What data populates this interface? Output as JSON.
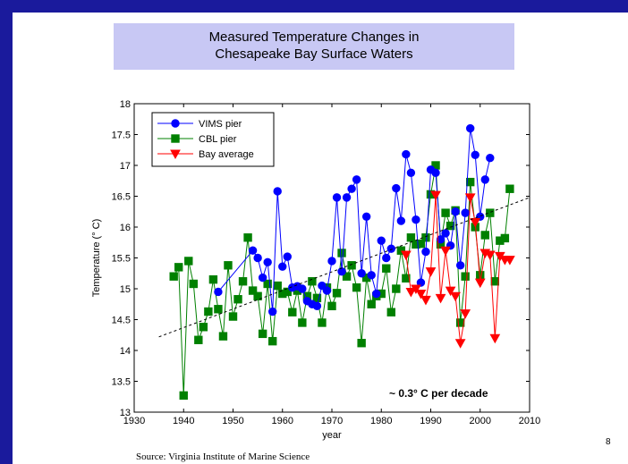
{
  "slide": {
    "title_line1": "Measured Temperature Changes in",
    "title_line2": "Chesapeake Bay Surface Waters",
    "source": "Source:  Virginia Institute of Marine Science",
    "page_number": "8",
    "colors": {
      "frame": "#1a1a9c",
      "title_bg": "#c8c8f4"
    }
  },
  "chart_data": {
    "type": "line",
    "title": "",
    "xlabel": "year",
    "ylabel": "Temperature (° C)",
    "xlim": [
      1930,
      2010
    ],
    "ylim": [
      13,
      18
    ],
    "xticks": [
      1930,
      1940,
      1950,
      1960,
      1970,
      1980,
      1990,
      2000,
      2010
    ],
    "yticks": [
      13,
      13.5,
      14,
      14.5,
      15,
      15.5,
      16,
      16.5,
      17,
      17.5,
      18
    ],
    "grid": false,
    "legend_position": "top-left",
    "annotation": "~ 0.3° C per decade",
    "series": [
      {
        "name": "VIMS pier",
        "color": "#0000ff",
        "marker": "circle",
        "points": [
          [
            1947,
            14.95
          ],
          [
            1954,
            15.62
          ],
          [
            1955,
            15.5
          ],
          [
            1956,
            15.18
          ],
          [
            1957,
            15.43
          ],
          [
            1958,
            14.63
          ],
          [
            1959,
            16.58
          ],
          [
            1960,
            15.36
          ],
          [
            1961,
            15.52
          ],
          [
            1962,
            15.02
          ],
          [
            1963,
            15.04
          ],
          [
            1964,
            15.0
          ],
          [
            1965,
            14.8
          ],
          [
            1966,
            14.75
          ],
          [
            1967,
            14.72
          ],
          [
            1968,
            15.05
          ],
          [
            1969,
            14.97
          ],
          [
            1970,
            15.45
          ],
          [
            1971,
            16.48
          ],
          [
            1972,
            15.28
          ],
          [
            1973,
            16.48
          ],
          [
            1974,
            16.62
          ],
          [
            1975,
            16.77
          ],
          [
            1976,
            15.25
          ],
          [
            1977,
            16.17
          ],
          [
            1978,
            15.22
          ],
          [
            1979,
            14.92
          ],
          [
            1980,
            15.78
          ],
          [
            1981,
            15.5
          ],
          [
            1982,
            15.65
          ],
          [
            1983,
            16.63
          ],
          [
            1984,
            16.1
          ],
          [
            1985,
            17.18
          ],
          [
            1986,
            16.88
          ],
          [
            1987,
            16.12
          ],
          [
            1988,
            15.1
          ],
          [
            1989,
            15.6
          ],
          [
            1990,
            16.93
          ],
          [
            1991,
            16.88
          ],
          [
            1992,
            15.8
          ],
          [
            1993,
            15.9
          ],
          [
            1994,
            15.7
          ],
          [
            1995,
            16.25
          ],
          [
            1996,
            15.38
          ],
          [
            1997,
            16.23
          ],
          [
            1998,
            17.6
          ],
          [
            1999,
            17.17
          ],
          [
            2000,
            16.17
          ],
          [
            2001,
            16.77
          ],
          [
            2002,
            17.12
          ]
        ]
      },
      {
        "name": "CBL pier",
        "color": "#008000",
        "marker": "square",
        "points": [
          [
            1938,
            15.2
          ],
          [
            1939,
            15.35
          ],
          [
            1940,
            13.27
          ],
          [
            1941,
            15.45
          ],
          [
            1942,
            15.08
          ],
          [
            1943,
            14.17
          ],
          [
            1944,
            14.38
          ],
          [
            1945,
            14.63
          ],
          [
            1946,
            15.15
          ],
          [
            1947,
            14.67
          ],
          [
            1948,
            14.23
          ],
          [
            1949,
            15.38
          ],
          [
            1950,
            14.55
          ],
          [
            1951,
            14.83
          ],
          [
            1952,
            15.12
          ],
          [
            1953,
            15.83
          ],
          [
            1954,
            14.97
          ],
          [
            1955,
            14.88
          ],
          [
            1956,
            14.27
          ],
          [
            1957,
            15.08
          ],
          [
            1958,
            14.15
          ],
          [
            1959,
            15.05
          ],
          [
            1960,
            14.92
          ],
          [
            1961,
            14.95
          ],
          [
            1962,
            14.62
          ],
          [
            1963,
            14.97
          ],
          [
            1964,
            14.45
          ],
          [
            1965,
            14.88
          ],
          [
            1966,
            15.12
          ],
          [
            1967,
            14.85
          ],
          [
            1968,
            14.45
          ],
          [
            1969,
            15.02
          ],
          [
            1970,
            14.72
          ],
          [
            1971,
            14.93
          ],
          [
            1972,
            15.58
          ],
          [
            1973,
            15.2
          ],
          [
            1974,
            15.38
          ],
          [
            1975,
            15.02
          ],
          [
            1976,
            14.12
          ],
          [
            1977,
            15.18
          ],
          [
            1978,
            14.75
          ],
          [
            1979,
            14.88
          ],
          [
            1980,
            14.92
          ],
          [
            1981,
            15.33
          ],
          [
            1982,
            14.62
          ],
          [
            1983,
            15.0
          ],
          [
            1984,
            15.62
          ],
          [
            1985,
            15.17
          ],
          [
            1986,
            15.83
          ],
          [
            1987,
            15.72
          ],
          [
            1988,
            15.73
          ],
          [
            1989,
            15.83
          ],
          [
            1990,
            16.53
          ],
          [
            1991,
            17.0
          ],
          [
            1992,
            15.72
          ],
          [
            1993,
            16.23
          ],
          [
            1994,
            16.02
          ],
          [
            1995,
            16.27
          ],
          [
            1996,
            14.45
          ],
          [
            1997,
            15.2
          ],
          [
            1998,
            16.73
          ],
          [
            1999,
            16.0
          ],
          [
            2000,
            15.22
          ],
          [
            2001,
            15.87
          ],
          [
            2002,
            16.23
          ],
          [
            2003,
            15.12
          ],
          [
            2004,
            15.78
          ],
          [
            2005,
            15.82
          ],
          [
            2006,
            16.62
          ]
        ]
      },
      {
        "name": "Bay average",
        "color": "#ff0000",
        "marker": "triangle-down",
        "points": [
          [
            1985,
            15.55
          ],
          [
            1986,
            14.95
          ],
          [
            1987,
            15.0
          ],
          [
            1988,
            14.92
          ],
          [
            1989,
            14.82
          ],
          [
            1990,
            15.28
          ],
          [
            1991,
            16.52
          ],
          [
            1992,
            14.85
          ],
          [
            1993,
            15.62
          ],
          [
            1994,
            14.97
          ],
          [
            1995,
            14.88
          ],
          [
            1996,
            14.12
          ],
          [
            1997,
            14.6
          ],
          [
            1998,
            16.48
          ],
          [
            1999,
            16.08
          ],
          [
            2000,
            15.1
          ],
          [
            2001,
            15.58
          ],
          [
            2002,
            15.55
          ],
          [
            2003,
            14.2
          ],
          [
            2004,
            15.53
          ],
          [
            2005,
            15.47
          ],
          [
            2006,
            15.47
          ]
        ]
      }
    ],
    "trendline": {
      "style": "dashed",
      "color": "#000000",
      "points": [
        [
          1935,
          14.22
        ],
        [
          2010,
          16.48
        ]
      ]
    }
  }
}
